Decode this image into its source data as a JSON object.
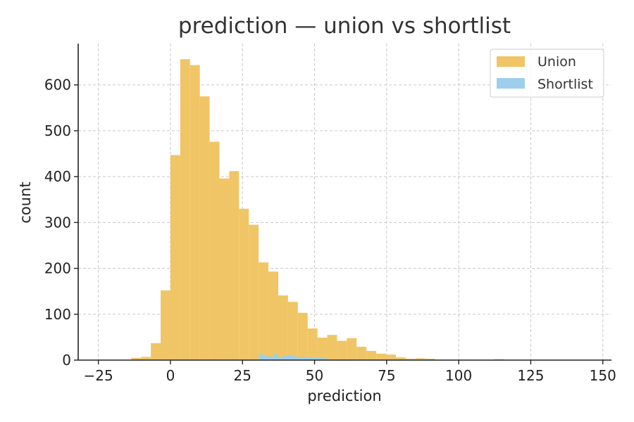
{
  "chart_data": {
    "type": "bar",
    "title": "prediction — union vs shortlist",
    "xlabel": "prediction",
    "ylabel": "count",
    "xlim": [
      -32,
      153
    ],
    "ylim": [
      0,
      690
    ],
    "xticks": [
      -25,
      0,
      25,
      50,
      75,
      100,
      125,
      150
    ],
    "xtick_labels": [
      "−25",
      "0",
      "25",
      "50",
      "75",
      "100",
      "125",
      "150"
    ],
    "yticks": [
      0,
      100,
      200,
      300,
      400,
      500,
      600
    ],
    "ytick_labels": [
      "0",
      "100",
      "200",
      "300",
      "400",
      "500",
      "600"
    ],
    "grid": true,
    "legend_position": "top-right",
    "series": [
      {
        "name": "Union",
        "color": "#f0c566",
        "bin_width": 3.4,
        "bins": [
          {
            "x0": -13.6,
            "count": 5
          },
          {
            "x0": -10.2,
            "count": 7
          },
          {
            "x0": -6.8,
            "count": 37
          },
          {
            "x0": -3.4,
            "count": 152
          },
          {
            "x0": 0.0,
            "count": 447
          },
          {
            "x0": 3.4,
            "count": 656
          },
          {
            "x0": 6.8,
            "count": 643
          },
          {
            "x0": 10.2,
            "count": 575
          },
          {
            "x0": 13.6,
            "count": 476
          },
          {
            "x0": 17.0,
            "count": 396
          },
          {
            "x0": 20.4,
            "count": 412
          },
          {
            "x0": 23.8,
            "count": 330
          },
          {
            "x0": 27.2,
            "count": 295
          },
          {
            "x0": 30.6,
            "count": 213
          },
          {
            "x0": 34.0,
            "count": 193
          },
          {
            "x0": 37.4,
            "count": 141
          },
          {
            "x0": 40.8,
            "count": 127
          },
          {
            "x0": 44.2,
            "count": 103
          },
          {
            "x0": 47.6,
            "count": 69
          },
          {
            "x0": 51.0,
            "count": 49
          },
          {
            "x0": 54.4,
            "count": 55
          },
          {
            "x0": 57.8,
            "count": 42
          },
          {
            "x0": 61.2,
            "count": 48
          },
          {
            "x0": 64.6,
            "count": 29
          },
          {
            "x0": 68.0,
            "count": 20
          },
          {
            "x0": 71.4,
            "count": 14
          },
          {
            "x0": 74.8,
            "count": 12
          },
          {
            "x0": 78.2,
            "count": 6
          },
          {
            "x0": 81.6,
            "count": 3
          },
          {
            "x0": 85.0,
            "count": 4
          },
          {
            "x0": 88.4,
            "count": 3
          },
          {
            "x0": 91.8,
            "count": 1
          },
          {
            "x0": 95.2,
            "count": 1
          },
          {
            "x0": 98.6,
            "count": 1
          },
          {
            "x0": 112.2,
            "count": 2
          }
        ]
      },
      {
        "name": "Shortlist",
        "color": "#9dcfed",
        "bin_width": 1.7,
        "bins": [
          {
            "x0": 30.6,
            "count": 12
          },
          {
            "x0": 32.3,
            "count": 9
          },
          {
            "x0": 34.0,
            "count": 7
          },
          {
            "x0": 35.7,
            "count": 13
          },
          {
            "x0": 37.4,
            "count": 6
          },
          {
            "x0": 39.1,
            "count": 9
          },
          {
            "x0": 40.8,
            "count": 11
          },
          {
            "x0": 42.5,
            "count": 8
          },
          {
            "x0": 44.2,
            "count": 6
          },
          {
            "x0": 45.9,
            "count": 7
          },
          {
            "x0": 47.6,
            "count": 6
          },
          {
            "x0": 49.3,
            "count": 5
          },
          {
            "x0": 51.0,
            "count": 5
          },
          {
            "x0": 52.7,
            "count": 4
          }
        ]
      }
    ]
  }
}
